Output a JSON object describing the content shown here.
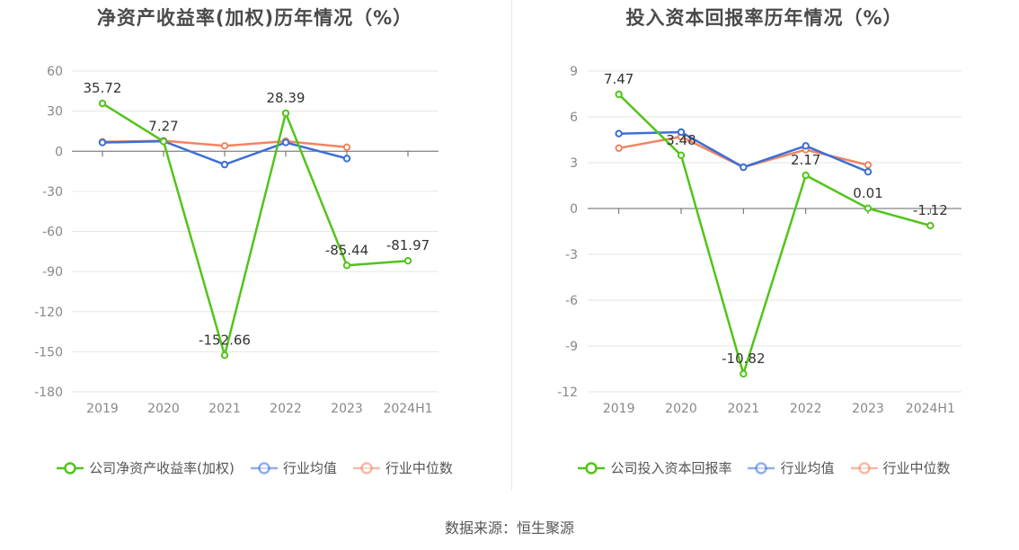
{
  "source": "数据来源：恒生聚源",
  "chart_data": [
    {
      "type": "line",
      "title": "净资产收益率(加权)历年情况（%）",
      "categories": [
        "2019",
        "2020",
        "2021",
        "2022",
        "2023",
        "2024H1"
      ],
      "ylim": [
        -180,
        60
      ],
      "yticks": [
        60,
        30,
        0,
        -30,
        -60,
        -90,
        -120,
        -150,
        -180
      ],
      "grid": true,
      "legend_position": "bottom",
      "series": [
        {
          "name": "公司净资产收益率(加权)",
          "color": "#52c41a",
          "values": [
            35.72,
            7.27,
            -152.66,
            28.39,
            -85.44,
            -81.97
          ],
          "labels": [
            "35.72",
            "7.27",
            "-152.66",
            "28.39",
            "-85.44",
            "-81.97"
          ]
        },
        {
          "name": "行业均值",
          "color": "#3c6fd6",
          "values": [
            6.5,
            7.5,
            -10.0,
            6.5,
            -5.5,
            null
          ]
        },
        {
          "name": "行业中位数",
          "color": "#f08562",
          "values": [
            7.0,
            7.8,
            4.0,
            7.5,
            3.0,
            null
          ]
        }
      ]
    },
    {
      "type": "line",
      "title": "投入资本回报率历年情况（%）",
      "categories": [
        "2019",
        "2020",
        "2021",
        "2022",
        "2023",
        "2024H1"
      ],
      "ylim": [
        -12,
        9
      ],
      "yticks": [
        9,
        6,
        3,
        0,
        -3,
        -6,
        -9,
        -12
      ],
      "grid": true,
      "legend_position": "bottom",
      "series": [
        {
          "name": "公司投入资本回报率",
          "color": "#52c41a",
          "values": [
            7.47,
            3.48,
            -10.82,
            2.17,
            0.01,
            -1.12
          ],
          "labels": [
            "7.47",
            "3.48",
            "-10.82",
            "2.17",
            "0.01",
            "-1.12"
          ]
        },
        {
          "name": "行业均值",
          "color": "#3c6fd6",
          "values": [
            4.9,
            5.0,
            2.7,
            4.1,
            2.4,
            null
          ]
        },
        {
          "name": "行业中位数",
          "color": "#f08562",
          "values": [
            3.95,
            4.7,
            2.7,
            3.85,
            2.85,
            null
          ]
        }
      ]
    }
  ]
}
